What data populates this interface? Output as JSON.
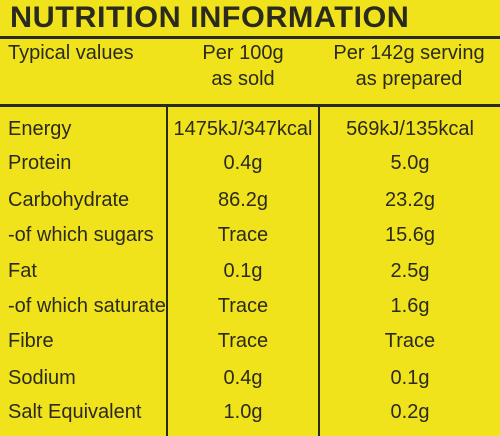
{
  "title": "NUTRITION INFORMATION",
  "header": {
    "label": "Typical values",
    "col1_line1": "Per 100g",
    "col1_line2": "as sold",
    "col2_line1": "Per 142g serving",
    "col2_line2": "as prepared"
  },
  "rows": [
    {
      "name": "Energy",
      "per100": "1475kJ/347kcal",
      "perServing": "569kJ/135kcal"
    },
    {
      "name": "Protein",
      "per100": "0.4g",
      "perServing": "5.0g"
    },
    {
      "name": "Carbohydrate",
      "per100": "86.2g",
      "perServing": "23.2g"
    },
    {
      "name": "-of which sugars",
      "per100": "Trace",
      "perServing": "15.6g"
    },
    {
      "name": "Fat",
      "per100": "0.1g",
      "perServing": "2.5g"
    },
    {
      "name": "-of which saturates",
      "per100": "Trace",
      "perServing": "1.6g"
    },
    {
      "name": "Fibre",
      "per100": "Trace",
      "perServing": "Trace"
    },
    {
      "name": "Sodium",
      "per100": "0.4g",
      "perServing": "0.1g"
    },
    {
      "name": "Salt Equivalent",
      "per100": "1.0g",
      "perServing": "0.2g"
    }
  ],
  "colors": {
    "background": "#f1e31b",
    "ink": "#2a2a1e"
  }
}
